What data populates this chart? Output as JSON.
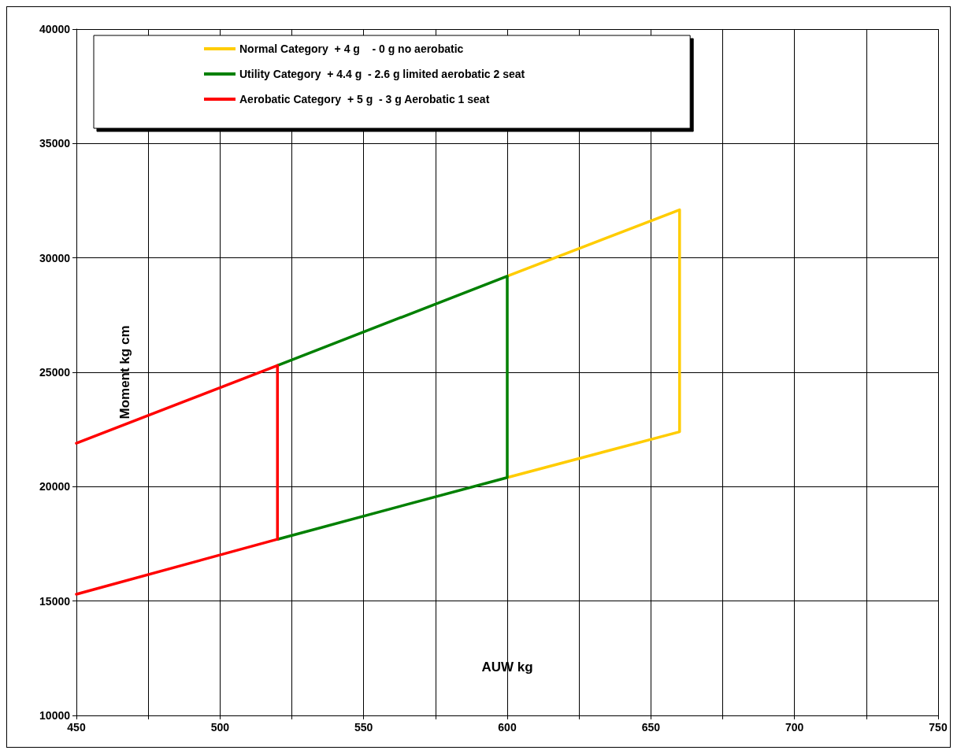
{
  "chart_data": {
    "type": "line",
    "xlabel": "AUW kg",
    "ylabel": "Moment kg cm",
    "xlim": [
      450,
      750
    ],
    "xticks": [
      450,
      {
        "value": 475,
        "label": null
      },
      500,
      {
        "value": 525,
        "label": null
      },
      550,
      {
        "value": 575,
        "label": null
      },
      600,
      {
        "value": 625,
        "label": null
      },
      650,
      {
        "value": 675,
        "label": null
      },
      700,
      {
        "value": 725,
        "label": null
      },
      750
    ],
    "ylim": [
      10000,
      40000
    ],
    "yticks": [
      10000,
      15000,
      20000,
      25000,
      30000,
      35000,
      40000
    ],
    "grid": true,
    "legend": "top left",
    "marker": "none",
    "line_style": "solid",
    "series": [
      {
        "name": "Normal Category  + 4 g    - 0 g no aerobatic",
        "color": "#ffcc00",
        "x": [
          600,
          660,
          660,
          600
        ],
        "values": [
          29200,
          32100,
          22400,
          20400
        ]
      },
      {
        "name": "Utility Category  + 4.4 g  - 2.6 g limited aerobatic 2 seat",
        "color": "#008000",
        "x": [
          520,
          600,
          600,
          520
        ],
        "values": [
          25300,
          29200,
          20400,
          17700
        ]
      },
      {
        "name": "Aerobatic Category  + 5 g  - 3 g Aerobatic 1 seat",
        "color": "#ff0000",
        "x": [
          450,
          520,
          520,
          450
        ],
        "values": [
          21900,
          25300,
          17700,
          15300
        ]
      }
    ]
  }
}
